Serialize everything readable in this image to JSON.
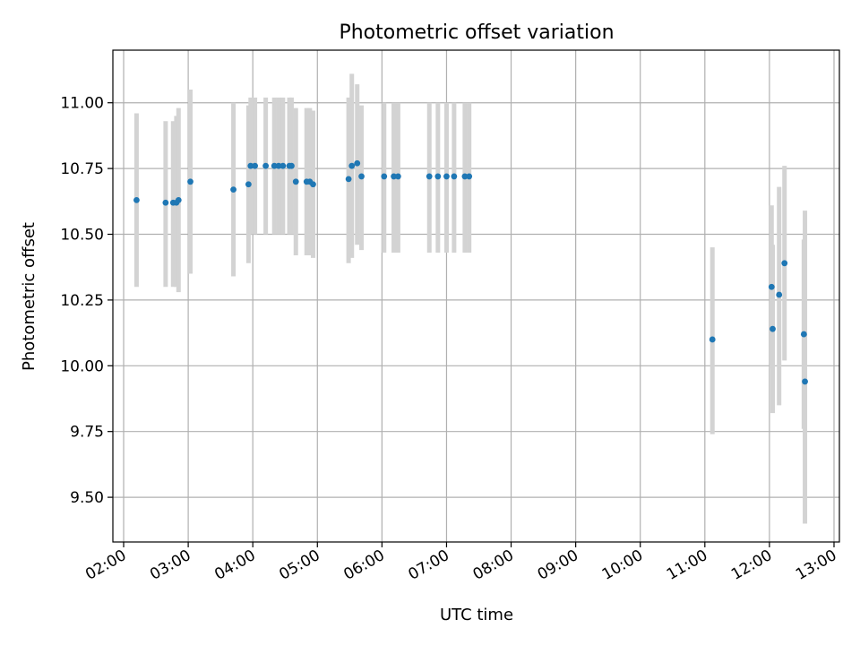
{
  "chart_data": {
    "type": "scatter",
    "title": "Photometric offset variation",
    "xlabel": "UTC time",
    "ylabel": "Photometric offset",
    "xlim": [
      "01:50",
      "13:05"
    ],
    "ylim": [
      9.33,
      11.2
    ],
    "grid": true,
    "x_ticks": [
      "02:00",
      "03:00",
      "04:00",
      "05:00",
      "06:00",
      "07:00",
      "08:00",
      "09:00",
      "10:00",
      "11:00",
      "12:00",
      "13:00"
    ],
    "y_ticks": [
      "9.50",
      "9.75",
      "10.00",
      "10.25",
      "10.50",
      "10.75",
      "11.00"
    ],
    "marker_color": "#1f77b4",
    "errorbar_color": "#d3d3d3",
    "points": [
      {
        "t": "02:12",
        "y": 10.63,
        "lo": 10.3,
        "hi": 10.96
      },
      {
        "t": "02:39",
        "y": 10.62,
        "lo": 10.3,
        "hi": 10.93
      },
      {
        "t": "02:46",
        "y": 10.62,
        "lo": 10.3,
        "hi": 10.93
      },
      {
        "t": "02:49",
        "y": 10.62,
        "lo": 10.3,
        "hi": 10.95
      },
      {
        "t": "02:51",
        "y": 10.63,
        "lo": 10.28,
        "hi": 10.98
      },
      {
        "t": "03:02",
        "y": 10.7,
        "lo": 10.35,
        "hi": 11.05
      },
      {
        "t": "03:42",
        "y": 10.67,
        "lo": 10.34,
        "hi": 11.0
      },
      {
        "t": "03:56",
        "y": 10.69,
        "lo": 10.39,
        "hi": 10.99
      },
      {
        "t": "03:58",
        "y": 10.76,
        "lo": 10.5,
        "hi": 11.02
      },
      {
        "t": "04:02",
        "y": 10.76,
        "lo": 10.5,
        "hi": 11.02
      },
      {
        "t": "04:12",
        "y": 10.76,
        "lo": 10.5,
        "hi": 11.02
      },
      {
        "t": "04:20",
        "y": 10.76,
        "lo": 10.5,
        "hi": 11.02
      },
      {
        "t": "04:24",
        "y": 10.76,
        "lo": 10.5,
        "hi": 11.02
      },
      {
        "t": "04:28",
        "y": 10.76,
        "lo": 10.5,
        "hi": 11.02
      },
      {
        "t": "04:34",
        "y": 10.76,
        "lo": 10.5,
        "hi": 11.02
      },
      {
        "t": "04:36",
        "y": 10.76,
        "lo": 10.5,
        "hi": 11.02
      },
      {
        "t": "04:40",
        "y": 10.7,
        "lo": 10.42,
        "hi": 10.98
      },
      {
        "t": "04:50",
        "y": 10.7,
        "lo": 10.42,
        "hi": 10.98
      },
      {
        "t": "04:53",
        "y": 10.7,
        "lo": 10.42,
        "hi": 10.98
      },
      {
        "t": "04:56",
        "y": 10.69,
        "lo": 10.41,
        "hi": 10.97
      },
      {
        "t": "05:29",
        "y": 10.71,
        "lo": 10.39,
        "hi": 11.02
      },
      {
        "t": "05:32",
        "y": 10.76,
        "lo": 10.41,
        "hi": 11.11
      },
      {
        "t": "05:37",
        "y": 10.77,
        "lo": 10.46,
        "hi": 11.07
      },
      {
        "t": "05:41",
        "y": 10.72,
        "lo": 10.44,
        "hi": 10.99
      },
      {
        "t": "06:02",
        "y": 10.72,
        "lo": 10.43,
        "hi": 11.0
      },
      {
        "t": "06:11",
        "y": 10.72,
        "lo": 10.43,
        "hi": 11.0
      },
      {
        "t": "06:15",
        "y": 10.72,
        "lo": 10.43,
        "hi": 11.0
      },
      {
        "t": "06:44",
        "y": 10.72,
        "lo": 10.43,
        "hi": 11.0
      },
      {
        "t": "06:52",
        "y": 10.72,
        "lo": 10.43,
        "hi": 11.0
      },
      {
        "t": "07:00",
        "y": 10.72,
        "lo": 10.43,
        "hi": 11.0
      },
      {
        "t": "07:07",
        "y": 10.72,
        "lo": 10.43,
        "hi": 11.0
      },
      {
        "t": "07:17",
        "y": 10.72,
        "lo": 10.43,
        "hi": 11.0
      },
      {
        "t": "07:21",
        "y": 10.72,
        "lo": 10.43,
        "hi": 11.0
      },
      {
        "t": "11:07",
        "y": 10.1,
        "lo": 9.74,
        "hi": 10.45
      },
      {
        "t": "12:02",
        "y": 10.3,
        "lo": 9.99,
        "hi": 10.61
      },
      {
        "t": "12:03",
        "y": 10.14,
        "lo": 9.82,
        "hi": 10.46
      },
      {
        "t": "12:09",
        "y": 10.27,
        "lo": 9.85,
        "hi": 10.68
      },
      {
        "t": "12:14",
        "y": 10.39,
        "lo": 10.02,
        "hi": 10.76
      },
      {
        "t": "12:32",
        "y": 10.12,
        "lo": 9.76,
        "hi": 10.48
      },
      {
        "t": "12:33",
        "y": 9.94,
        "lo": 9.4,
        "hi": 10.59
      }
    ]
  }
}
